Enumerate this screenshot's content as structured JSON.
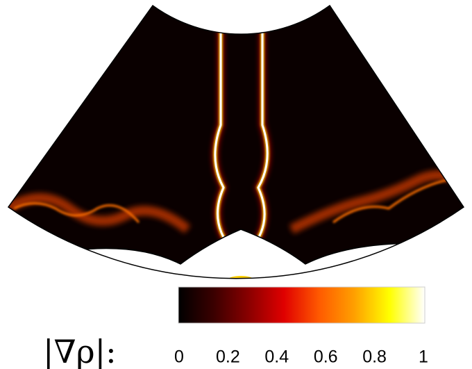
{
  "chart_data": {
    "type": "field",
    "colorbar": {
      "label": "|∇ρ|:",
      "clim": [
        0,
        1
      ],
      "ticks": [
        0,
        0.2,
        0.4,
        0.6,
        0.8,
        1
      ],
      "colormap": [
        "#000000",
        "#3a0000",
        "#8a0000",
        "#e00000",
        "#ff5a00",
        "#ffa000",
        "#ffff00",
        "#ffffff"
      ]
    }
  }
}
